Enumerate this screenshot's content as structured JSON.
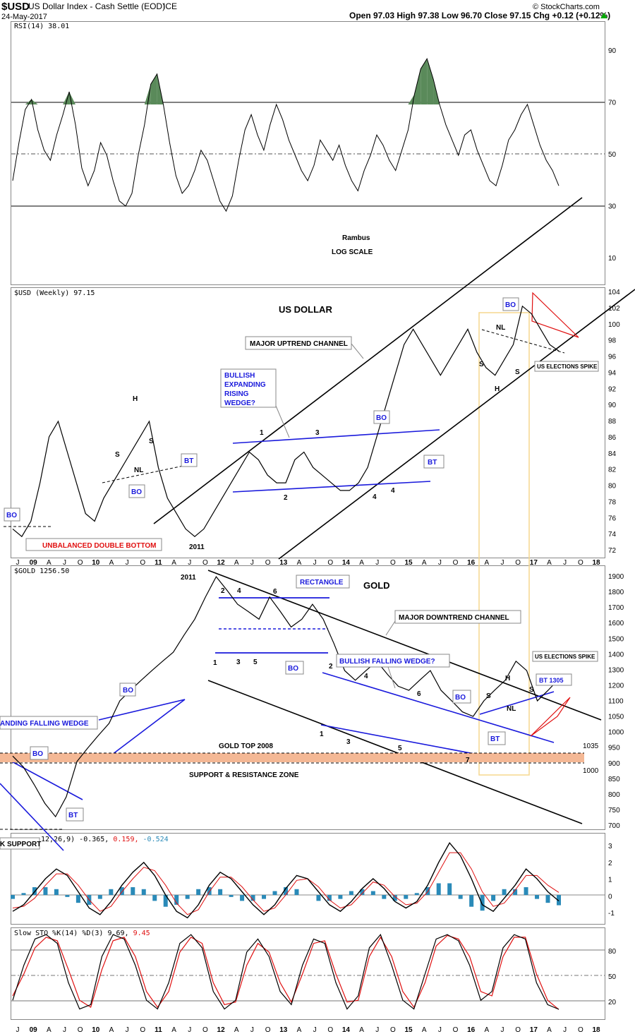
{
  "header": {
    "symbol": "$USD",
    "name": "US Dollar Index - Cash Settle (EOD)",
    "exchange": "ICE",
    "date": "24-May-2017",
    "quote": "Open 97.03  High 97.38  Low 96.70  Close 97.15  Chg +0.12 (+0.12%)",
    "quote_icon": "up-triangle-icon",
    "credit": "© StockCharts.com"
  },
  "colors": {
    "up": "#00aa00",
    "rsi_fill": "#5a8a5a",
    "zone": "#f4b895",
    "trend_blue": "#1a1adc",
    "trend_red": "#e01010",
    "highlight_box": "#f5d78e",
    "macd_hist": "#2a8ab8"
  },
  "chart_data": [
    {
      "id": "rsi",
      "type": "line",
      "title": "RSI(14) 38.01",
      "y_ticks": [
        "90",
        "70",
        "50",
        "30",
        "10"
      ],
      "ylim": [
        0,
        100
      ],
      "reference_lines": [
        70,
        50,
        30
      ],
      "series": [
        {
          "values": [
            40,
            55,
            68,
            72,
            60,
            52,
            48,
            58,
            66,
            75,
            62,
            45,
            38,
            44,
            55,
            50,
            40,
            32,
            30,
            35,
            50,
            62,
            78,
            82,
            70,
            55,
            42,
            35,
            38,
            44,
            52,
            48,
            40,
            32,
            28,
            34,
            48,
            60,
            66,
            58,
            52,
            62,
            70,
            64,
            56,
            50,
            44,
            40,
            46,
            56,
            52,
            48,
            54,
            46,
            40,
            36,
            44,
            50,
            58,
            54,
            48,
            44,
            52,
            60,
            74,
            84,
            88,
            80,
            70,
            62,
            56,
            50,
            58,
            60,
            52,
            46,
            40,
            38,
            46,
            56,
            60,
            66,
            70,
            62,
            54,
            48,
            44,
            38
          ]
        }
      ],
      "annotations": [
        "Rambus",
        "LOG SCALE"
      ]
    },
    {
      "id": "usd",
      "type": "line",
      "title": "$USD (Weekly) 97.15",
      "heading": "US DOLLAR",
      "y_ticks": [
        "104",
        "102",
        "100",
        "98",
        "96",
        "94",
        "92",
        "90",
        "88",
        "86",
        "84",
        "82",
        "80",
        "78",
        "76",
        "74",
        "72"
      ],
      "ylim": [
        71,
        105
      ],
      "series": [
        {
          "values": [
            74,
            73,
            75,
            80,
            86,
            88,
            84,
            80,
            76,
            75,
            78,
            80,
            82,
            84,
            86,
            88,
            82,
            78,
            76,
            74,
            73,
            74,
            76,
            78,
            80,
            82,
            84,
            83,
            81,
            80,
            80,
            83,
            84,
            82,
            81,
            80,
            79,
            79,
            80,
            82,
            86,
            90,
            94,
            98,
            100,
            98,
            96,
            94,
            96,
            98,
            100,
            97,
            95,
            94,
            96,
            98,
            103,
            102,
            100,
            98,
            97.15
          ]
        }
      ],
      "annotations": [
        "MAJOR UPTREND CHANNEL",
        "BULLISH",
        "EXPANDING",
        "RISING",
        "WEDGE?",
        "UNBALANCED DOUBLE BOTTOM",
        "US ELECTIONS SPIKE",
        "BO",
        "BO",
        "BO",
        "BO",
        "BT",
        "BT",
        "NL",
        "NL",
        "H",
        "H",
        "S",
        "S",
        "S",
        "S",
        "1",
        "2",
        "3",
        "4",
        "4",
        "2011"
      ]
    },
    {
      "id": "gold",
      "type": "line",
      "title": "$GOLD 1256.50",
      "heading": "GOLD",
      "y_ticks": [
        "1900",
        "1800",
        "1700",
        "1600",
        "1500",
        "1400",
        "1300",
        "1200",
        "1100",
        "1050",
        "1000",
        "950",
        "900",
        "850",
        "800",
        "750",
        "700"
      ],
      "ylim": [
        690,
        1950
      ],
      "levels": [
        1035,
        1000
      ],
      "level_labels": [
        "1035",
        "1000"
      ],
      "series": [
        {
          "values": [
            920,
            880,
            820,
            760,
            720,
            780,
            900,
            950,
            1000,
            1050,
            1150,
            1200,
            1250,
            1300,
            1350,
            1400,
            1500,
            1600,
            1750,
            1900,
            1800,
            1700,
            1650,
            1600,
            1750,
            1650,
            1550,
            1600,
            1700,
            1600,
            1450,
            1300,
            1250,
            1300,
            1350,
            1280,
            1220,
            1200,
            1250,
            1300,
            1200,
            1150,
            1100,
            1080,
            1150,
            1200,
            1250,
            1350,
            1300,
            1150,
            1200,
            1256.5
          ]
        }
      ],
      "annotations": [
        "RECTANGLE",
        "MAJOR DOWNTREND CHANNEL",
        "BULLISH FALLING WEDGE?",
        "GOLD TOP 2008",
        "SUPPORT & RESISTANCE ZONE",
        "ANDING FALLING WEDGE",
        "US ELECTIONS SPIKE",
        "BT 1305",
        "BO",
        "BO",
        "BO",
        "BO",
        "BT",
        "BT",
        "NL",
        "H",
        "S",
        "S",
        "1",
        "2",
        "3",
        "4",
        "5",
        "6",
        "7",
        "1",
        "2",
        "3",
        "4",
        "5",
        "6",
        "2011",
        "K SUPPORT"
      ]
    },
    {
      "id": "macd",
      "type": "line",
      "title": "12,26,9) -0.365, 0.159, -0.524",
      "title_parts": [
        "12,26,9) -0.365,",
        "0.159,",
        "-0.524"
      ],
      "y_ticks": [
        "3",
        "2",
        "1",
        "0",
        "-1"
      ],
      "ylim": [
        -1.6,
        3.6
      ],
      "series": [
        {
          "values": [
            -1.0,
            -0.6,
            0.2,
            1.0,
            1.6,
            1.2,
            0.2,
            -0.8,
            -1.2,
            -0.4,
            0.6,
            1.4,
            2.0,
            1.2,
            0.0,
            -1.0,
            -1.4,
            -0.6,
            0.6,
            1.4,
            1.0,
            0.2,
            -0.6,
            -1.2,
            -0.6,
            0.4,
            1.2,
            1.0,
            0.2,
            -0.6,
            -1.0,
            -0.4,
            0.4,
            1.0,
            0.4,
            -0.4,
            -0.8,
            -0.4,
            0.6,
            2.0,
            3.2,
            2.4,
            1.0,
            -0.6,
            -1.0,
            -0.2,
            0.6,
            1.6,
            1.0,
            0.2,
            -0.365
          ]
        },
        {
          "values": [
            -0.8,
            -0.7,
            -0.2,
            0.6,
            1.3,
            1.3,
            0.6,
            -0.3,
            -1.0,
            -0.7,
            0.2,
            1.0,
            1.7,
            1.5,
            0.6,
            -0.5,
            -1.2,
            -0.9,
            0.2,
            1.1,
            1.1,
            0.5,
            -0.3,
            -1.0,
            -0.8,
            0.0,
            0.9,
            1.0,
            0.5,
            -0.3,
            -0.8,
            -0.6,
            0.1,
            0.8,
            0.6,
            -0.1,
            -0.6,
            -0.5,
            0.2,
            1.4,
            2.6,
            2.6,
            1.6,
            0.2,
            -0.7,
            -0.5,
            0.3,
            1.2,
            1.2,
            0.6,
            0.159
          ]
        }
      ]
    },
    {
      "id": "stoch",
      "type": "line",
      "title": "Slow STO %K(14) %D(3) 9.69, 9.45",
      "title_parts": [
        "Slow STO %K(14) %D(3) 9.69,",
        "9.45"
      ],
      "y_ticks": [
        "80",
        "50",
        "20"
      ],
      "ylim": [
        0,
        100
      ],
      "reference_lines": [
        80,
        50,
        20
      ],
      "series": [
        {
          "values": [
            20,
            60,
            90,
            95,
            85,
            40,
            10,
            15,
            70,
            95,
            90,
            60,
            20,
            10,
            40,
            85,
            95,
            80,
            30,
            10,
            20,
            75,
            90,
            70,
            30,
            15,
            60,
            90,
            85,
            40,
            10,
            25,
            80,
            95,
            60,
            20,
            10,
            50,
            90,
            95,
            88,
            60,
            20,
            30,
            80,
            95,
            90,
            40,
            15,
            9.69
          ]
        },
        {
          "values": [
            25,
            50,
            80,
            92,
            88,
            55,
            20,
            12,
            55,
            88,
            92,
            70,
            30,
            12,
            30,
            75,
            92,
            85,
            40,
            15,
            18,
            60,
            85,
            75,
            40,
            18,
            50,
            85,
            88,
            50,
            18,
            20,
            70,
            92,
            70,
            30,
            12,
            40,
            82,
            94,
            90,
            70,
            30,
            25,
            70,
            92,
            92,
            50,
            20,
            9.45
          ]
        }
      ]
    }
  ],
  "x_axis_labels": [
    "J",
    "09",
    "A",
    "J",
    "O",
    "10",
    "A",
    "J",
    "O",
    "11",
    "A",
    "J",
    "O",
    "12",
    "A",
    "J",
    "O",
    "13",
    "A",
    "J",
    "O",
    "14",
    "A",
    "J",
    "O",
    "15",
    "A",
    "J",
    "O",
    "16",
    "A",
    "J",
    "O",
    "17",
    "A",
    "J",
    "O",
    "18"
  ]
}
